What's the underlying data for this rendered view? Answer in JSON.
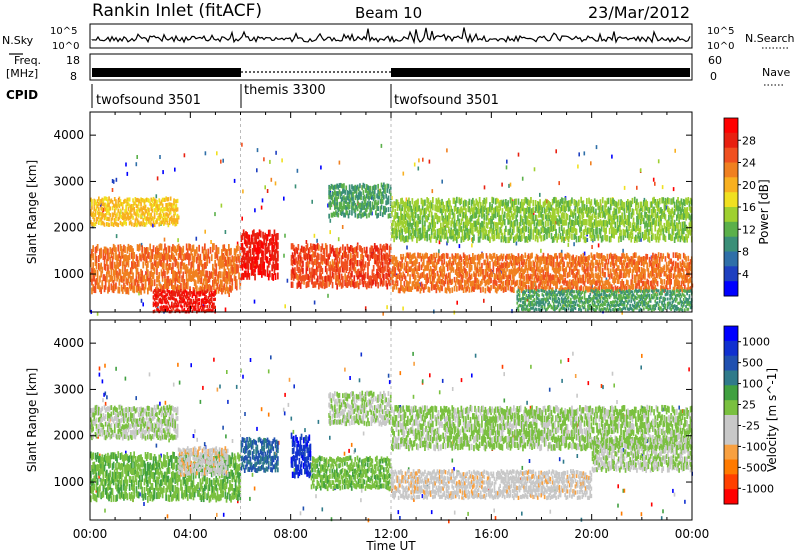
{
  "header": {
    "station": "Rankin Inlet (fitACF)",
    "beam": "Beam 10",
    "date": "23/Mar/2012"
  },
  "noise_panel": {
    "left_label": "N.Sky",
    "right_label": "N.Search",
    "left_ticks": [
      "10^5",
      "10^0"
    ],
    "right_ticks": [
      "10^5",
      "10^0"
    ]
  },
  "freq_panel": {
    "left_label_1": "Freq.",
    "left_label_2": "[MHz]",
    "right_label": "Nave",
    "left_ticks": [
      "18",
      "8"
    ],
    "right_ticks": [
      "60",
      "0"
    ]
  },
  "cpid": {
    "label": "CPID",
    "modes": [
      {
        "name": "twofsound 3501",
        "start_hour": 0,
        "end_hour": 6
      },
      {
        "name": "themis 3300",
        "start_hour": 6,
        "end_hour": 12
      },
      {
        "name": "twofsound 3501",
        "start_hour": 12,
        "end_hour": 24
      }
    ]
  },
  "colors": {
    "power_scale": [
      "#0000ff",
      "#1e40c0",
      "#2f6fa8",
      "#3b8f78",
      "#5bb04a",
      "#9fd030",
      "#f0e020",
      "#f8b020",
      "#f08020",
      "#f05020",
      "#e82010",
      "#ff0000"
    ],
    "velocity_scale": [
      "#ff0000",
      "#ff4000",
      "#ff7a00",
      "#f8a040",
      "#c8c8c8",
      "#c8c8c8",
      "#7ac040",
      "#40a040",
      "#2f7a8a",
      "#2050b0",
      "#1030d0",
      "#0000ff"
    ]
  },
  "chart_data": [
    {
      "type": "heatmap",
      "title": "Power",
      "xlabel": "",
      "ylabel": "Slant Range [km]",
      "xlim": [
        0,
        24
      ],
      "ylim": [
        180,
        4500
      ],
      "y_ticks": [
        "1000",
        "2000",
        "3000",
        "4000"
      ],
      "colorbar": {
        "label": "Power [dB]",
        "ticks": [
          "4",
          "8",
          "12",
          "16",
          "20",
          "24",
          "28"
        ],
        "range": [
          0,
          30
        ]
      },
      "bands": [
        {
          "t0": 0.0,
          "t1": 6.0,
          "r0": 700,
          "r1": 1700,
          "v": 22
        },
        {
          "t0": 0.0,
          "t1": 3.5,
          "r0": 2100,
          "r1": 2700,
          "v": 18
        },
        {
          "t0": 2.5,
          "t1": 5.0,
          "r0": 220,
          "r1": 700,
          "v": 27
        },
        {
          "t0": 6.0,
          "t1": 7.5,
          "r0": 1000,
          "r1": 2000,
          "v": 27
        },
        {
          "t0": 8.0,
          "t1": 12.0,
          "r0": 800,
          "r1": 1700,
          "v": 24
        },
        {
          "t0": 9.5,
          "t1": 12.0,
          "r0": 2300,
          "r1": 3000,
          "v": 10
        },
        {
          "t0": 12.0,
          "t1": 24.0,
          "r0": 700,
          "r1": 1500,
          "v": 22
        },
        {
          "t0": 12.0,
          "t1": 24.0,
          "r0": 1800,
          "r1": 2700,
          "v": 13
        },
        {
          "t0": 17.0,
          "t1": 24.0,
          "r0": 250,
          "r1": 700,
          "v": 10
        }
      ]
    },
    {
      "type": "heatmap",
      "title": "Velocity",
      "xlabel": "Time UT",
      "ylabel": "Slant Range [km]",
      "xlim": [
        0,
        24
      ],
      "ylim": [
        180,
        4500
      ],
      "x_ticks": [
        "00:00",
        "04:00",
        "08:00",
        "12:00",
        "16:00",
        "20:00",
        "00:00"
      ],
      "y_ticks": [
        "1000",
        "2000",
        "3000",
        "4000"
      ],
      "colorbar": {
        "label": "Velocity [m s^-1]",
        "ticks": [
          "1000",
          "500",
          "100",
          "25",
          "-25",
          "-100",
          "-500",
          "-1000"
        ],
        "range": [
          -1200,
          1200
        ]
      },
      "bands": [
        {
          "t0": 0.0,
          "t1": 3.5,
          "r0": 2000,
          "r1": 2700,
          "v": 0
        },
        {
          "t0": 0.0,
          "t1": 6.0,
          "r0": 700,
          "r1": 1700,
          "v": 150
        },
        {
          "t0": 3.5,
          "t1": 5.5,
          "r0": 1200,
          "r1": 1800,
          "v": -300
        },
        {
          "t0": 6.0,
          "t1": 7.5,
          "r0": 1300,
          "r1": 2000,
          "v": 600
        },
        {
          "t0": 8.0,
          "t1": 8.8,
          "r0": 1200,
          "r1": 2100,
          "v": 900
        },
        {
          "t0": 8.8,
          "t1": 12.0,
          "r0": 900,
          "r1": 1600,
          "v": 150
        },
        {
          "t0": 9.5,
          "t1": 12.0,
          "r0": 2300,
          "r1": 3000,
          "v": 0
        },
        {
          "t0": 12.0,
          "t1": 20.0,
          "r0": 700,
          "r1": 1300,
          "v": -300
        },
        {
          "t0": 12.0,
          "t1": 24.0,
          "r0": 1800,
          "r1": 2700,
          "v": 50
        },
        {
          "t0": 20.0,
          "t1": 24.0,
          "r0": 1300,
          "r1": 2000,
          "v": 0
        }
      ]
    }
  ]
}
